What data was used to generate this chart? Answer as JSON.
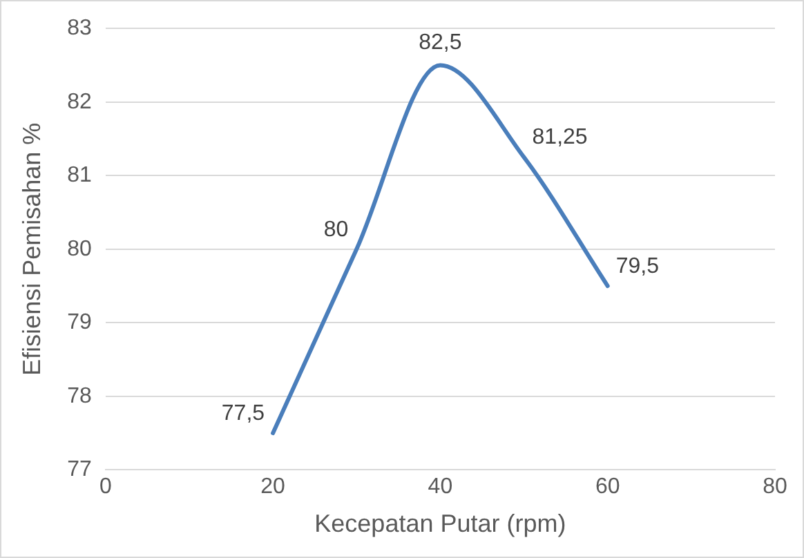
{
  "chart_data": {
    "type": "line",
    "xlabel": "Kecepatan Putar (rpm)",
    "ylabel": "Efisiensi Pemisahan %",
    "x": [
      20,
      30,
      40,
      50,
      60
    ],
    "series": [
      {
        "color": "#4a7ebb",
        "values": [
          77.5,
          80,
          82.5,
          81.25,
          79.5
        ],
        "value_labels": [
          "77,5",
          "80",
          "82,5",
          "81,25",
          "79,5"
        ]
      }
    ],
    "xlim": [
      0,
      80
    ],
    "xticks": [
      0,
      20,
      40,
      60,
      80
    ],
    "ylim": [
      77,
      83
    ],
    "yticks": [
      77,
      78,
      79,
      80,
      81,
      82,
      83
    ],
    "grid": "y",
    "legend": false,
    "marker": "none",
    "line_style": "solid"
  }
}
